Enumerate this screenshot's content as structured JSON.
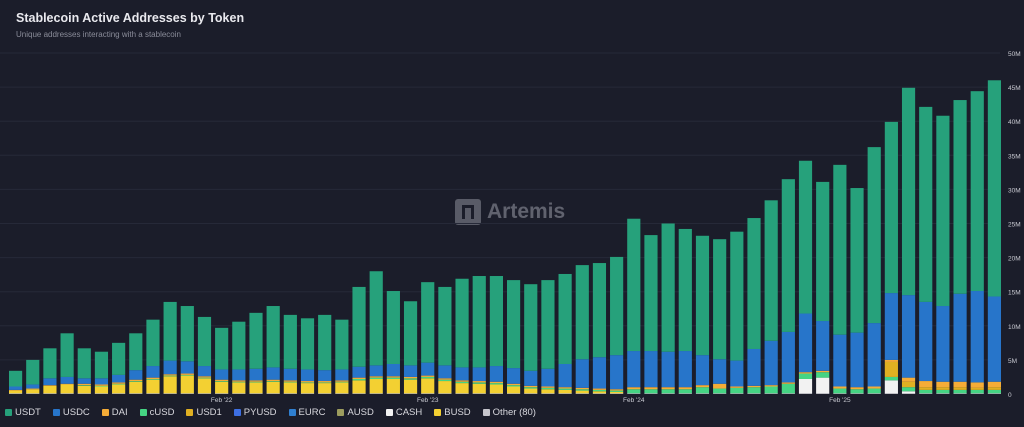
{
  "header": {
    "title": "Stablecoin Active Addresses by Token",
    "subtitle": "Unique addresses interacting with a stablecoin"
  },
  "watermark": "Artemis",
  "chart_data": {
    "type": "bar",
    "stacked": true,
    "title": "Stablecoin Active Addresses by Token",
    "subtitle": "Unique addresses interacting with a stablecoin",
    "ylim": [
      0,
      50000000
    ],
    "y_unit": "M",
    "y_ticks": [
      {
        "value": 0,
        "label": "0"
      },
      {
        "value": 5,
        "label": "5M"
      },
      {
        "value": 10,
        "label": "10M"
      },
      {
        "value": 15,
        "label": "15M"
      },
      {
        "value": 20,
        "label": "20M"
      },
      {
        "value": 25,
        "label": "25M"
      },
      {
        "value": 30,
        "label": "30M"
      },
      {
        "value": 35,
        "label": "35M"
      },
      {
        "value": 40,
        "label": "40M"
      },
      {
        "value": 45,
        "label": "45M"
      },
      {
        "value": 50,
        "label": "50M"
      }
    ],
    "x_ticks": [
      {
        "index": 12,
        "label": "Feb '22"
      },
      {
        "index": 24,
        "label": "Feb '23"
      },
      {
        "index": 36,
        "label": "Feb '24"
      },
      {
        "index": 48,
        "label": "Feb '25"
      }
    ],
    "grid": true,
    "legend_position": "bottom-left",
    "values_in_millions": true,
    "series": [
      {
        "name": "USDT",
        "color": "#26a17b",
        "values": [
          2.3,
          3.6,
          4.4,
          6.4,
          4.4,
          3.9,
          4.7,
          5.4,
          6.8,
          8.6,
          8.1,
          7.2,
          6.1,
          7.0,
          8.2,
          9.0,
          7.9,
          7.5,
          8.1,
          7.3,
          11.7,
          13.8,
          10.7,
          9.4,
          11.8,
          11.5,
          13.0,
          13.4,
          13.2,
          12.9,
          12.7,
          13.0,
          13.2,
          13.8,
          13.8,
          14.4,
          19.4,
          17.0,
          18.8,
          17.9,
          17.5,
          17.6,
          18.9,
          19.2,
          20.6,
          22.4,
          22.4,
          20.4,
          24.9,
          21.2,
          25.8,
          25.1,
          30.4,
          28.6,
          27.9,
          28.4,
          29.3,
          31.7
        ]
      },
      {
        "name": "USDC",
        "color": "#2775ca",
        "values": [
          0.5,
          0.6,
          1.0,
          1.0,
          0.8,
          0.9,
          1.1,
          1.4,
          1.7,
          2.0,
          1.8,
          1.5,
          1.5,
          1.6,
          1.7,
          1.8,
          1.7,
          1.7,
          1.6,
          1.6,
          1.6,
          1.6,
          1.8,
          1.7,
          1.9,
          1.9,
          1.9,
          2.0,
          2.3,
          2.3,
          2.2,
          2.6,
          3.4,
          4.2,
          4.6,
          5.0,
          5.3,
          5.3,
          5.2,
          5.3,
          4.4,
          3.6,
          3.8,
          5.4,
          6.5,
          7.4,
          8.6,
          7.3,
          7.6,
          8.0,
          9.3,
          9.8,
          12.1,
          11.6,
          11.1,
          12.9,
          13.4,
          12.5
        ]
      },
      {
        "name": "DAI",
        "color": "#f5ac37",
        "values": [
          0.1,
          0.1,
          0.1,
          0.1,
          0.2,
          0.2,
          0.2,
          0.2,
          0.2,
          0.2,
          0.2,
          0.2,
          0.2,
          0.2,
          0.2,
          0.2,
          0.2,
          0.2,
          0.2,
          0.2,
          0.2,
          0.2,
          0.2,
          0.2,
          0.2,
          0.2,
          0.2,
          0.2,
          0.2,
          0.2,
          0.2,
          0.2,
          0.2,
          0.2,
          0.2,
          0.2,
          0.3,
          0.3,
          0.3,
          0.3,
          0.3,
          0.7,
          0.2,
          0.2,
          0.2,
          0.2,
          0.2,
          0.2,
          0.3,
          0.3,
          0.3,
          0.3,
          0.6,
          0.9,
          0.8,
          0.8,
          0.8,
          0.8
        ]
      },
      {
        "name": "cUSD",
        "color": "#45d483",
        "values": [
          0,
          0,
          0,
          0,
          0.1,
          0.1,
          0.1,
          0.1,
          0.1,
          0.1,
          0.1,
          0.1,
          0.1,
          0.1,
          0.1,
          0.1,
          0.1,
          0.1,
          0.1,
          0.1,
          0.2,
          0.2,
          0.2,
          0.2,
          0.2,
          0.2,
          0.2,
          0.2,
          0.2,
          0.2,
          0.2,
          0.2,
          0.2,
          0.2,
          0.2,
          0.2,
          0.6,
          0.6,
          0.6,
          0.6,
          0.9,
          0.7,
          0.8,
          0.9,
          1.0,
          1.4,
          0.8,
          0.8,
          0.7,
          0.6,
          0.7,
          0.5,
          0.6,
          0.5,
          0.5,
          0.5,
          0.5,
          0.5
        ]
      },
      {
        "name": "USD1",
        "color": "#e0b022",
        "values": [
          0,
          0,
          0,
          0,
          0,
          0,
          0,
          0,
          0,
          0,
          0,
          0,
          0,
          0,
          0,
          0,
          0,
          0,
          0,
          0,
          0,
          0,
          0,
          0,
          0,
          0,
          0,
          0,
          0,
          0,
          0,
          0,
          0,
          0,
          0,
          0,
          0,
          0,
          0,
          0,
          0,
          0,
          0,
          0,
          0,
          0,
          0,
          0,
          0,
          0,
          0,
          2.2,
          0.8,
          0.4,
          0.4,
          0.4,
          0.3,
          0.4
        ]
      },
      {
        "name": "PYUSD",
        "color": "#3d6fe3",
        "values": []
      },
      {
        "name": "EURC",
        "color": "#2f7fd0",
        "values": []
      },
      {
        "name": "AUSD",
        "color": "#9c9c5e",
        "values": []
      },
      {
        "name": "CASH",
        "color": "#f2f2f2",
        "values": [
          0,
          0,
          0,
          0,
          0,
          0,
          0,
          0,
          0,
          0,
          0,
          0,
          0,
          0,
          0,
          0,
          0,
          0,
          0,
          0,
          0,
          0,
          0,
          0,
          0,
          0,
          0,
          0,
          0,
          0,
          0,
          0,
          0,
          0,
          0,
          0,
          0,
          0,
          0,
          0,
          0,
          0,
          0,
          0,
          0,
          0,
          2.1,
          2.3,
          0,
          0,
          0,
          1.9,
          0.3,
          0,
          0,
          0,
          0,
          0
        ]
      },
      {
        "name": "BUSD",
        "color": "#f3d032",
        "values": [
          0.4,
          0.6,
          1.1,
          1.3,
          1.1,
          1.0,
          1.3,
          1.7,
          2.0,
          2.5,
          2.6,
          2.2,
          1.7,
          1.6,
          1.6,
          1.7,
          1.6,
          1.5,
          1.5,
          1.6,
          1.9,
          2.1,
          2.1,
          2.0,
          2.2,
          1.8,
          1.5,
          1.4,
          1.3,
          1.0,
          0.7,
          0.6,
          0.5,
          0.4,
          0.3,
          0.2,
          0,
          0,
          0,
          0,
          0,
          0,
          0,
          0,
          0,
          0,
          0,
          0,
          0,
          0,
          0,
          0,
          0,
          0,
          0,
          0,
          0,
          0
        ]
      },
      {
        "name": "Other (80)",
        "color": "#c6c6cc",
        "values": [
          0.1,
          0.1,
          0.1,
          0.1,
          0.1,
          0.1,
          0.1,
          0.1,
          0.1,
          0.1,
          0.1,
          0.1,
          0.1,
          0.1,
          0.1,
          0.1,
          0.1,
          0.1,
          0.1,
          0.1,
          0.1,
          0.1,
          0.1,
          0.1,
          0.1,
          0.1,
          0.1,
          0.1,
          0.1,
          0.1,
          0.1,
          0.1,
          0.1,
          0.1,
          0.1,
          0.1,
          0.1,
          0.1,
          0.1,
          0.1,
          0.1,
          0.1,
          0.1,
          0.1,
          0.1,
          0.1,
          0.1,
          0.1,
          0.1,
          0.1,
          0.1,
          0.1,
          0.1,
          0.1,
          0.1,
          0.1,
          0.1,
          0.1
        ]
      }
    ]
  }
}
